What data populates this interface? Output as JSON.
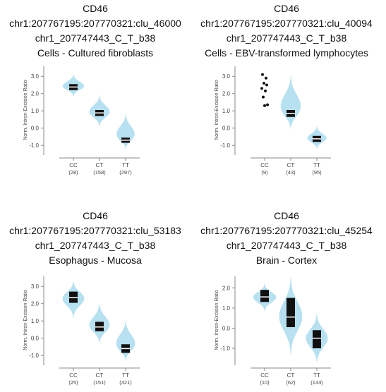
{
  "chart_data": [
    {
      "type": "violin",
      "title_lines": [
        "CD46",
        "chr1:207767195:207770321:clu_46000",
        "chr1_207747443_C_T_b38",
        "Cells - Cultured fibroblasts"
      ],
      "ylabel": "Norm. Intron-Excision Ratio",
      "ylim": [
        -1.4,
        3.5
      ],
      "yticks": [
        "3.0",
        "2.0",
        "1.0",
        "0.0",
        "-1.0"
      ],
      "categories": [
        "CC",
        "CT",
        "TT"
      ],
      "counts": [
        "(28)",
        "(158)",
        "(297)"
      ],
      "groups": [
        {
          "min": 1.85,
          "max": 3.1,
          "q1": 2.2,
          "median": 2.38,
          "q3": 2.55,
          "width": 0.85
        },
        {
          "min": 0.1,
          "max": 1.9,
          "q1": 0.7,
          "median": 0.88,
          "q3": 1.05,
          "width": 0.8
        },
        {
          "min": -1.2,
          "max": 0.8,
          "q1": -0.85,
          "median": -0.7,
          "q3": -0.55,
          "width": 0.8
        }
      ],
      "outliers": [
        [],
        [],
        []
      ]
    },
    {
      "type": "violin",
      "title_lines": [
        "CD46",
        "chr1:207767195:207770321:clu_40094",
        "chr1_207747443_C_T_b38",
        "Cells - EBV-transformed lymphocytes"
      ],
      "ylabel": "Norm. Intron-Excision Ratio",
      "ylim": [
        -1.4,
        3.5
      ],
      "yticks": [
        "3.0",
        "2.0",
        "1.0",
        "0.0",
        "-1.0"
      ],
      "categories": [
        "CC",
        "CT",
        "TT"
      ],
      "counts": [
        "(9)",
        "(43)",
        "(95)"
      ],
      "groups": [
        null,
        {
          "min": -0.05,
          "max": 3.0,
          "q1": 0.65,
          "median": 0.85,
          "q3": 1.05,
          "width": 0.85
        },
        {
          "min": -1.2,
          "max": 0.1,
          "q1": -0.8,
          "median": -0.62,
          "q3": -0.45,
          "width": 0.75
        }
      ],
      "outliers": [
        [
          3.1,
          2.9,
          2.6,
          2.5,
          2.3,
          2.15,
          1.8,
          1.35,
          1.3
        ],
        [],
        []
      ]
    },
    {
      "type": "violin",
      "title_lines": [
        "CD46",
        "chr1:207767195:207770321:clu_53183",
        "chr1_207747443_C_T_b38",
        "Esophagus - Mucosa"
      ],
      "ylabel": "Norm. Intron-Excision Ratio",
      "ylim": [
        -1.4,
        3.5
      ],
      "yticks": [
        "3.0",
        "2.0",
        "1.0",
        "0.0",
        "-1.0"
      ],
      "categories": [
        "CC",
        "CT",
        "TT"
      ],
      "counts": [
        "(25)",
        "(151)",
        "(321)"
      ],
      "groups": [
        {
          "min": 1.2,
          "max": 3.3,
          "q1": 2.05,
          "median": 2.35,
          "q3": 2.7,
          "width": 0.85
        },
        {
          "min": -0.3,
          "max": 2.0,
          "q1": 0.4,
          "median": 0.65,
          "q3": 0.95,
          "width": 0.8
        },
        {
          "min": -1.3,
          "max": 1.0,
          "q1": -0.85,
          "median": -0.6,
          "q3": -0.35,
          "width": 0.8
        }
      ],
      "outliers": [
        [],
        [],
        []
      ]
    },
    {
      "type": "violin",
      "title_lines": [
        "CD46",
        "chr1:207767195:207770321:clu_45254",
        "chr1_207747443_C_T_b38",
        "Brain - Cortex"
      ],
      "ylabel": "Norm. Intron-Excision Ratio",
      "ylim": [
        -1.7,
        2.5
      ],
      "yticks": [
        "2.0",
        "1.0",
        "0.0",
        "-1.0"
      ],
      "categories": [
        "CC",
        "CT",
        "TT"
      ],
      "counts": [
        "(10)",
        "(62)",
        "(133)"
      ],
      "groups": [
        {
          "min": 0.85,
          "max": 2.2,
          "q1": 1.3,
          "median": 1.55,
          "q3": 1.9,
          "width": 0.9
        },
        {
          "min": -1.3,
          "max": 2.5,
          "q1": 0.05,
          "median": 0.55,
          "q3": 1.5,
          "width": 0.9
        },
        {
          "min": -1.7,
          "max": 0.7,
          "q1": -1.0,
          "median": -0.5,
          "q3": -0.1,
          "width": 0.85
        }
      ],
      "outliers": [
        [],
        [],
        []
      ]
    }
  ],
  "colors": {
    "violin_fill": "#b7e0f0",
    "box_fill": "#111111",
    "median_line": "#ffffff",
    "outlier": "#111111",
    "axis": "#888888"
  }
}
